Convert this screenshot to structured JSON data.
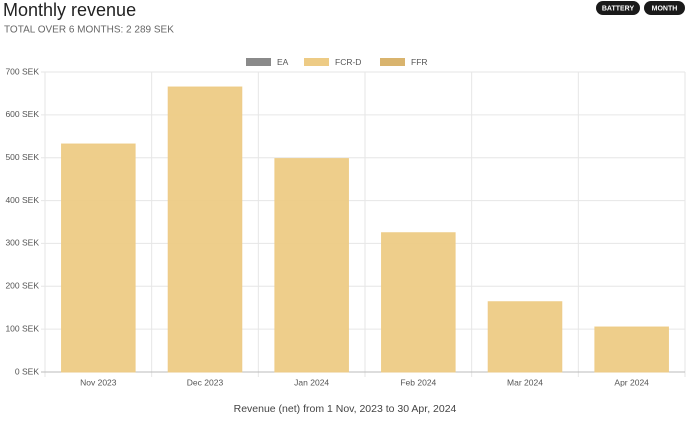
{
  "chart_data": {
    "type": "stacked-bar",
    "title": "Monthly revenue",
    "subtitle": "TOTAL OVER 6 MONTHS: 2 289 SEK",
    "x_label": "Revenue (net) from 1 Nov, 2023 to 30 Apr, 2024",
    "categories": [
      "Nov 2023",
      "Dec 2023",
      "Jan 2024",
      "Feb 2024",
      "Mar 2024",
      "Apr 2024"
    ],
    "series": [
      {
        "name": "EA",
        "color": "#8a8a8a",
        "values": [
          0,
          0,
          0,
          0,
          0,
          0
        ]
      },
      {
        "name": "FCR-D",
        "color": "#edcb85",
        "values": [
          532,
          665,
          498,
          325,
          164,
          105
        ]
      },
      {
        "name": "FFR",
        "color": "#d9b46e",
        "values": [
          0,
          0,
          0,
          0,
          0,
          0
        ]
      }
    ],
    "ylim": [
      0,
      700
    ],
    "yticks": [
      {
        "value": 0,
        "label": "0 SEK"
      },
      {
        "value": 100,
        "label": "100 SEK"
      },
      {
        "value": 200,
        "label": "200 SEK"
      },
      {
        "value": 300,
        "label": "300 SEK"
      },
      {
        "value": 400,
        "label": "400 SEK"
      },
      {
        "value": 500,
        "label": "500 SEK"
      },
      {
        "value": 600,
        "label": "600 SEK"
      },
      {
        "value": 700,
        "label": "700 SEK"
      }
    ],
    "grid": true,
    "legend": "top"
  },
  "controls": [
    "BATTERY",
    "MONTH"
  ]
}
